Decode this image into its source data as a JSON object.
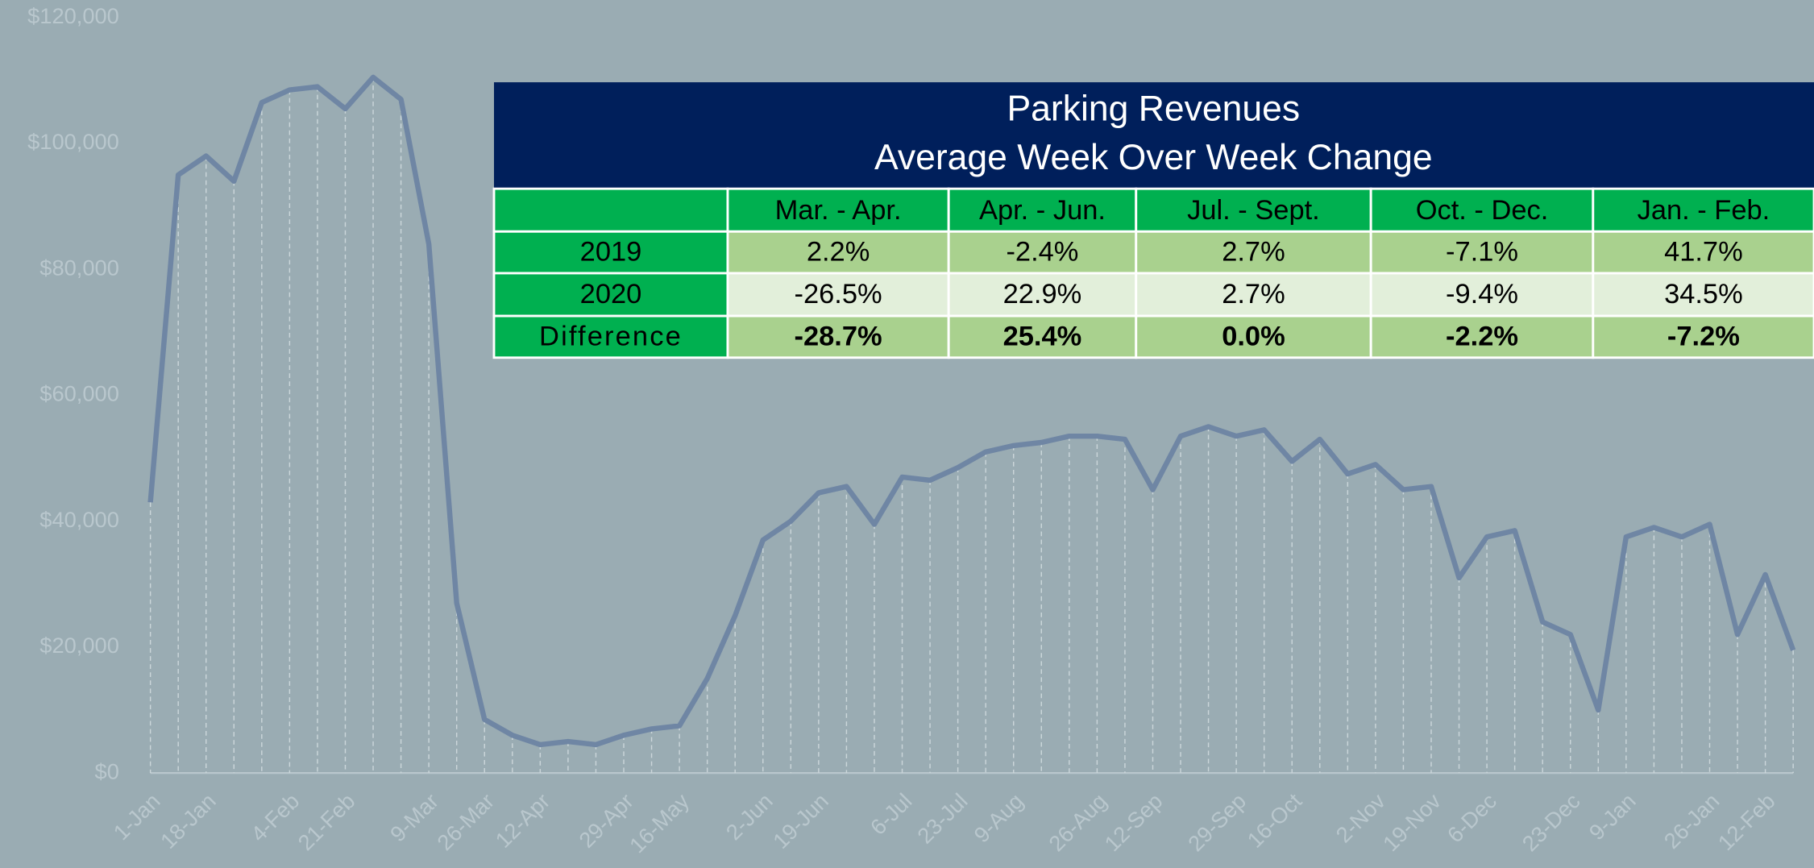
{
  "chart_data": {
    "type": "line",
    "categories": [
      "1-Jan",
      null,
      "18-Jan",
      null,
      null,
      "4-Feb",
      null,
      "21-Feb",
      null,
      null,
      "9-Mar",
      null,
      "26-Mar",
      null,
      "12-Apr",
      null,
      null,
      "29-Apr",
      null,
      "16-May",
      null,
      null,
      "2-Jun",
      null,
      "19-Jun",
      null,
      null,
      "6-Jul",
      null,
      "23-Jul",
      null,
      "9-Aug",
      null,
      null,
      "26-Aug",
      null,
      "12-Sep",
      null,
      null,
      "29-Sep",
      null,
      "16-Oct",
      null,
      null,
      "2-Nov",
      null,
      "19-Nov",
      null,
      "6-Dec",
      null,
      null,
      "23-Dec",
      null,
      "9-Jan",
      null,
      null,
      "26-Jan",
      null,
      "12-Feb",
      null
    ],
    "series": [
      {
        "name": "Parking Revenues",
        "color": "#6f86a4",
        "values": [
          43000,
          95000,
          98000,
          94000,
          106500,
          108500,
          109000,
          105500,
          110500,
          107000,
          84000,
          27000,
          8500,
          6000,
          4500,
          5000,
          4500,
          6000,
          7000,
          7500,
          15000,
          25000,
          37000,
          40000,
          44500,
          45500,
          39500,
          47000,
          46500,
          48500,
          51000,
          52000,
          52500,
          53500,
          53500,
          53000,
          45000,
          53500,
          55000,
          53500,
          54500,
          49500,
          53000,
          47500,
          49000,
          45000,
          45500,
          31000,
          37500,
          38500,
          24000,
          22000,
          10000,
          37500,
          39000,
          37500,
          39500,
          22000,
          31500,
          19500
        ]
      }
    ],
    "ylim": [
      0,
      120000
    ],
    "yticks": [
      {
        "value": 0,
        "label": "$0"
      },
      {
        "value": 20000,
        "label": "$20,000"
      },
      {
        "value": 40000,
        "label": "$40,000"
      },
      {
        "value": 60000,
        "label": "$60,000"
      },
      {
        "value": 80000,
        "label": "$80,000"
      },
      {
        "value": 100000,
        "label": "$100,000"
      },
      {
        "value": 120000,
        "label": "$120,000"
      }
    ],
    "grid": false
  },
  "table": {
    "title": [
      "Parking Revenues",
      "Average Week Over Week Change"
    ],
    "columns": [
      "Mar. - Apr.",
      "Apr. - Jun.",
      "Jul. - Sept.",
      "Oct. - Dec.",
      "Jan. - Feb."
    ],
    "rows": [
      [
        "2019",
        "2.2%",
        "-2.4%",
        "2.7%",
        "-7.1%",
        "41.7%"
      ],
      [
        "2020",
        "-26.5%",
        "22.9%",
        "2.7%",
        "-9.4%",
        "34.5%"
      ],
      [
        "Difference",
        "-28.7%",
        "25.4%",
        "0.0%",
        "-2.2%",
        "-7.2%"
      ]
    ]
  }
}
